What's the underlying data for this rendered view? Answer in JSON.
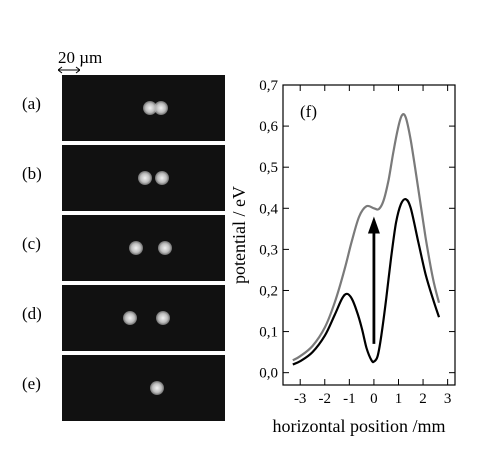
{
  "scale_bar": {
    "label": "20 µm"
  },
  "panels": [
    {
      "label": "(a)",
      "ion_x_um": [
        -6.5,
        4.0
      ]
    },
    {
      "label": "(b)",
      "ion_x_um": [
        -11.0,
        4.5
      ]
    },
    {
      "label": "(c)",
      "ion_x_um": [
        -19.0,
        7.0
      ]
    },
    {
      "label": "(d)",
      "ion_x_um": [
        -25.0,
        5.0
      ]
    },
    {
      "label": "(e)",
      "ion_x_um": [
        0.0
      ]
    }
  ],
  "chart_data": {
    "type": "line",
    "panel_label": "(f)",
    "xlabel": "horizontal position /mm",
    "ylabel": "potential / eV",
    "xlim": [
      -3.7,
      3.3
    ],
    "ylim": [
      -0.03,
      0.7
    ],
    "x_ticks": [
      "-3",
      "-2",
      "-1",
      "0",
      "1",
      "2",
      "3"
    ],
    "x_tick_values": [
      -3,
      -2,
      -1,
      0,
      1,
      2,
      3
    ],
    "y_ticks": [
      "0,0",
      "0,1",
      "0,2",
      "0,3",
      "0,4",
      "0,5",
      "0,6",
      "0,7"
    ],
    "y_tick_values": [
      0.0,
      0.1,
      0.2,
      0.3,
      0.4,
      0.5,
      0.6,
      0.7
    ],
    "grid": false,
    "annotation_arrow": {
      "x": 0.0,
      "y_from": 0.07,
      "y_to": 0.38
    },
    "series": [
      {
        "color": "#7a7a7a",
        "x": [
          -3.3,
          -3.0,
          -2.5,
          -2.0,
          -1.6,
          -1.2,
          -0.9,
          -0.6,
          -0.3,
          0.0,
          0.2,
          0.4,
          0.6,
          0.8,
          1.0,
          1.15,
          1.3,
          1.5,
          1.8,
          2.1,
          2.4,
          2.65
        ],
        "y": [
          0.03,
          0.04,
          0.065,
          0.11,
          0.17,
          0.25,
          0.32,
          0.38,
          0.405,
          0.4,
          0.398,
          0.42,
          0.47,
          0.54,
          0.6,
          0.627,
          0.62,
          0.565,
          0.45,
          0.33,
          0.23,
          0.17
        ]
      },
      {
        "color": "#000000",
        "x": [
          -3.3,
          -3.0,
          -2.5,
          -2.0,
          -1.6,
          -1.3,
          -1.1,
          -0.9,
          -0.7,
          -0.5,
          -0.3,
          -0.1,
          0.0,
          0.15,
          0.3,
          0.5,
          0.7,
          0.9,
          1.1,
          1.3,
          1.5,
          1.8,
          2.1,
          2.4,
          2.65
        ],
        "y": [
          0.02,
          0.028,
          0.05,
          0.09,
          0.14,
          0.18,
          0.192,
          0.18,
          0.15,
          0.11,
          0.06,
          0.03,
          0.027,
          0.04,
          0.09,
          0.18,
          0.28,
          0.365,
          0.41,
          0.422,
          0.4,
          0.32,
          0.24,
          0.18,
          0.135
        ]
      }
    ]
  }
}
